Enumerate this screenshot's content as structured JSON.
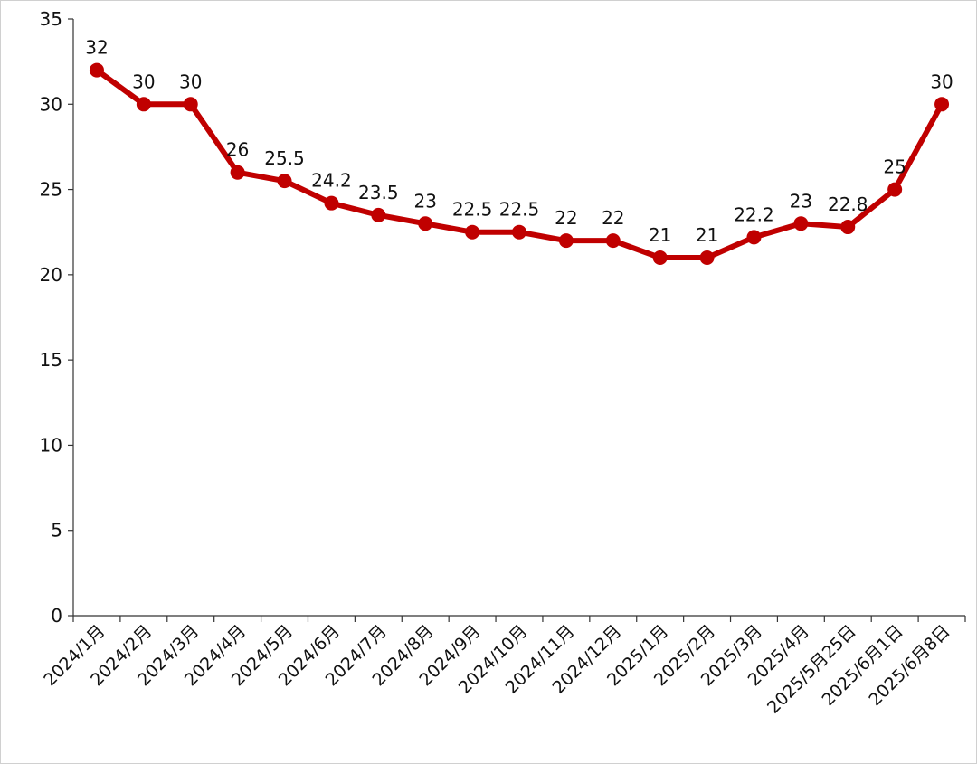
{
  "chart_data": {
    "type": "line",
    "title": "",
    "xlabel": "",
    "ylabel": "",
    "categories": [
      "2024/1月",
      "2024/2月",
      "2024/3月",
      "2024/4月",
      "2024/5月",
      "2024/6月",
      "2024/7月",
      "2024/8月",
      "2024/9月",
      "2024/10月",
      "2024/11月",
      "2024/12月",
      "2025/1月",
      "2025/2月",
      "2025/3月",
      "2025/4月",
      "2025/5月25日",
      "2025/6月1日",
      "2025/6月8日"
    ],
    "series": [
      {
        "values": [
          32,
          30,
          30,
          26,
          25.5,
          24.2,
          23.5,
          23,
          22.5,
          22.5,
          22,
          22,
          21,
          21,
          22.2,
          23,
          22.8,
          25,
          30
        ]
      }
    ],
    "data_labels": [
      "32",
      "30",
      "30",
      "26",
      "25.5",
      "24.2",
      "23.5",
      "23",
      "22.5",
      "22.5",
      "22",
      "22",
      "21",
      "21",
      "22.2",
      "23",
      "22.8",
      "25",
      "30"
    ],
    "ylim": [
      0,
      35
    ],
    "yticks": [
      "0",
      "5",
      "10",
      "15",
      "20",
      "25",
      "30",
      "35"
    ],
    "grid": false,
    "legend": "none",
    "line_color": "#c00000"
  }
}
